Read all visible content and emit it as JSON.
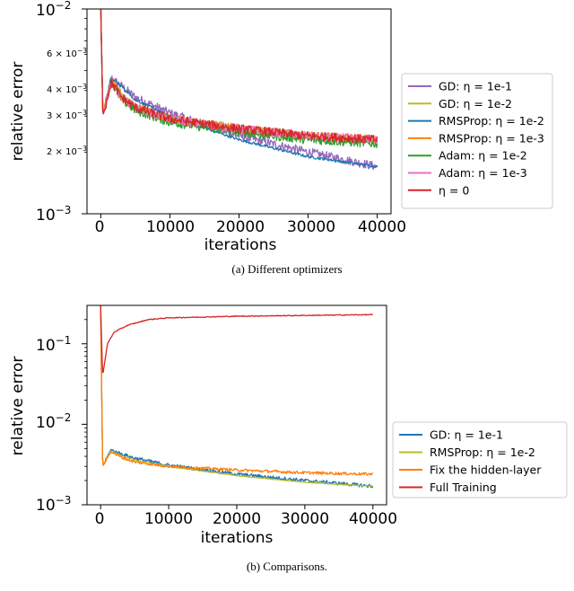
{
  "chart_data": [
    {
      "type": "line",
      "title": "",
      "xlabel": "iterations",
      "ylabel": "relative error",
      "yscale": "log",
      "xlim": [
        -2000,
        42000
      ],
      "ylim": [
        0.001,
        0.01
      ],
      "x_ticks": [
        0,
        10000,
        20000,
        30000,
        40000
      ],
      "x_tick_labels": [
        "0",
        "10000",
        "20000",
        "30000",
        "40000"
      ],
      "y_major_tick_labels": [
        "10^-2",
        "10^-3"
      ],
      "y_minor_tick_labels": [
        "6 × 10^-3",
        "4 × 10^-3",
        "3 × 10^-3",
        "2 × 10^-3"
      ],
      "legend_position": "right, outside",
      "grid": false,
      "caption": "(a) Different optimizers",
      "series": [
        {
          "name": "GD: η = 1e-1",
          "color": "#9467bd",
          "x": [
            0,
            300,
            1500,
            3000,
            5000,
            10000,
            20000,
            30000,
            40000
          ],
          "values": [
            0.01,
            0.003,
            0.0046,
            0.0042,
            0.0037,
            0.0031,
            0.0024,
            0.002,
            0.0017
          ]
        },
        {
          "name": "GD: η = 1e-2",
          "color": "#bcbd22",
          "x": [
            0,
            300,
            1500,
            3000,
            5000,
            10000,
            20000,
            30000,
            40000
          ],
          "values": [
            0.01,
            0.003,
            0.0045,
            0.0038,
            0.0033,
            0.0029,
            0.0026,
            0.0024,
            0.0023
          ]
        },
        {
          "name": "RMSProp: η = 1e-2",
          "color": "#1f77b4",
          "x": [
            0,
            300,
            1500,
            3000,
            5000,
            10000,
            20000,
            30000,
            40000
          ],
          "values": [
            0.01,
            0.003,
            0.0046,
            0.0042,
            0.0036,
            0.003,
            0.0023,
            0.0019,
            0.0017
          ]
        },
        {
          "name": "RMSProp: η = 1e-3",
          "color": "#ff7f0e",
          "x": [
            0,
            300,
            1500,
            3000,
            5000,
            10000,
            20000,
            30000,
            40000
          ],
          "values": [
            0.01,
            0.003,
            0.0045,
            0.0037,
            0.0033,
            0.0029,
            0.0026,
            0.0024,
            0.0023
          ]
        },
        {
          "name": "Adam: η = 1e-2",
          "color": "#2ca02c",
          "x": [
            0,
            300,
            1500,
            3000,
            5000,
            10000,
            20000,
            30000,
            40000
          ],
          "values": [
            0.01,
            0.003,
            0.0044,
            0.0036,
            0.0032,
            0.0028,
            0.0025,
            0.0023,
            0.0022
          ]
        },
        {
          "name": "Adam: η = 1e-3",
          "color": "#e377c2",
          "x": [
            0,
            300,
            1500,
            3000,
            5000,
            10000,
            20000,
            30000,
            40000
          ],
          "values": [
            0.01,
            0.003,
            0.0045,
            0.0037,
            0.0033,
            0.0029,
            0.0026,
            0.0024,
            0.0023
          ]
        },
        {
          "name": "η = 0",
          "color": "#d62728",
          "x": [
            0,
            300,
            1500,
            3000,
            5000,
            10000,
            20000,
            30000,
            40000
          ],
          "values": [
            0.01,
            0.003,
            0.0044,
            0.0037,
            0.0033,
            0.0029,
            0.0026,
            0.0024,
            0.0023
          ]
        }
      ]
    },
    {
      "type": "line",
      "title": "",
      "xlabel": "iterations",
      "ylabel": "relative error",
      "yscale": "log",
      "xlim": [
        -2000,
        42000
      ],
      "ylim": [
        0.001,
        0.3
      ],
      "x_ticks": [
        0,
        10000,
        20000,
        30000,
        40000
      ],
      "x_tick_labels": [
        "0",
        "10000",
        "20000",
        "30000",
        "40000"
      ],
      "y_major_tick_labels": [
        "10^-1",
        "10^-2",
        "10^-3"
      ],
      "legend_position": "right, outside",
      "grid": false,
      "caption": "(b) Comparisons.",
      "series": [
        {
          "name": "GD: η = 1e-1",
          "color": "#1f77b4",
          "x": [
            0,
            300,
            1500,
            3000,
            5000,
            10000,
            20000,
            30000,
            40000
          ],
          "values": [
            0.3,
            0.003,
            0.0048,
            0.0043,
            0.0038,
            0.0031,
            0.0024,
            0.002,
            0.0017
          ]
        },
        {
          "name": "RMSProp: η = 1e-2",
          "color": "#bcbd22",
          "x": [
            0,
            300,
            1500,
            3000,
            5000,
            10000,
            20000,
            30000,
            40000
          ],
          "values": [
            0.3,
            0.003,
            0.0046,
            0.0041,
            0.0036,
            0.003,
            0.0023,
            0.0019,
            0.0017
          ]
        },
        {
          "name": "Fix the hidden-layer",
          "color": "#ff7f0e",
          "x": [
            0,
            300,
            1500,
            3000,
            5000,
            10000,
            20000,
            30000,
            40000
          ],
          "values": [
            0.3,
            0.003,
            0.0046,
            0.0039,
            0.0034,
            0.003,
            0.0027,
            0.0025,
            0.0024
          ]
        },
        {
          "name": "Full Training",
          "color": "#d62728",
          "x": [
            0,
            300,
            1000,
            2000,
            4000,
            7000,
            10000,
            20000,
            30000,
            40000
          ],
          "values": [
            0.3,
            0.04,
            0.1,
            0.14,
            0.17,
            0.2,
            0.21,
            0.22,
            0.225,
            0.23
          ]
        }
      ]
    }
  ]
}
